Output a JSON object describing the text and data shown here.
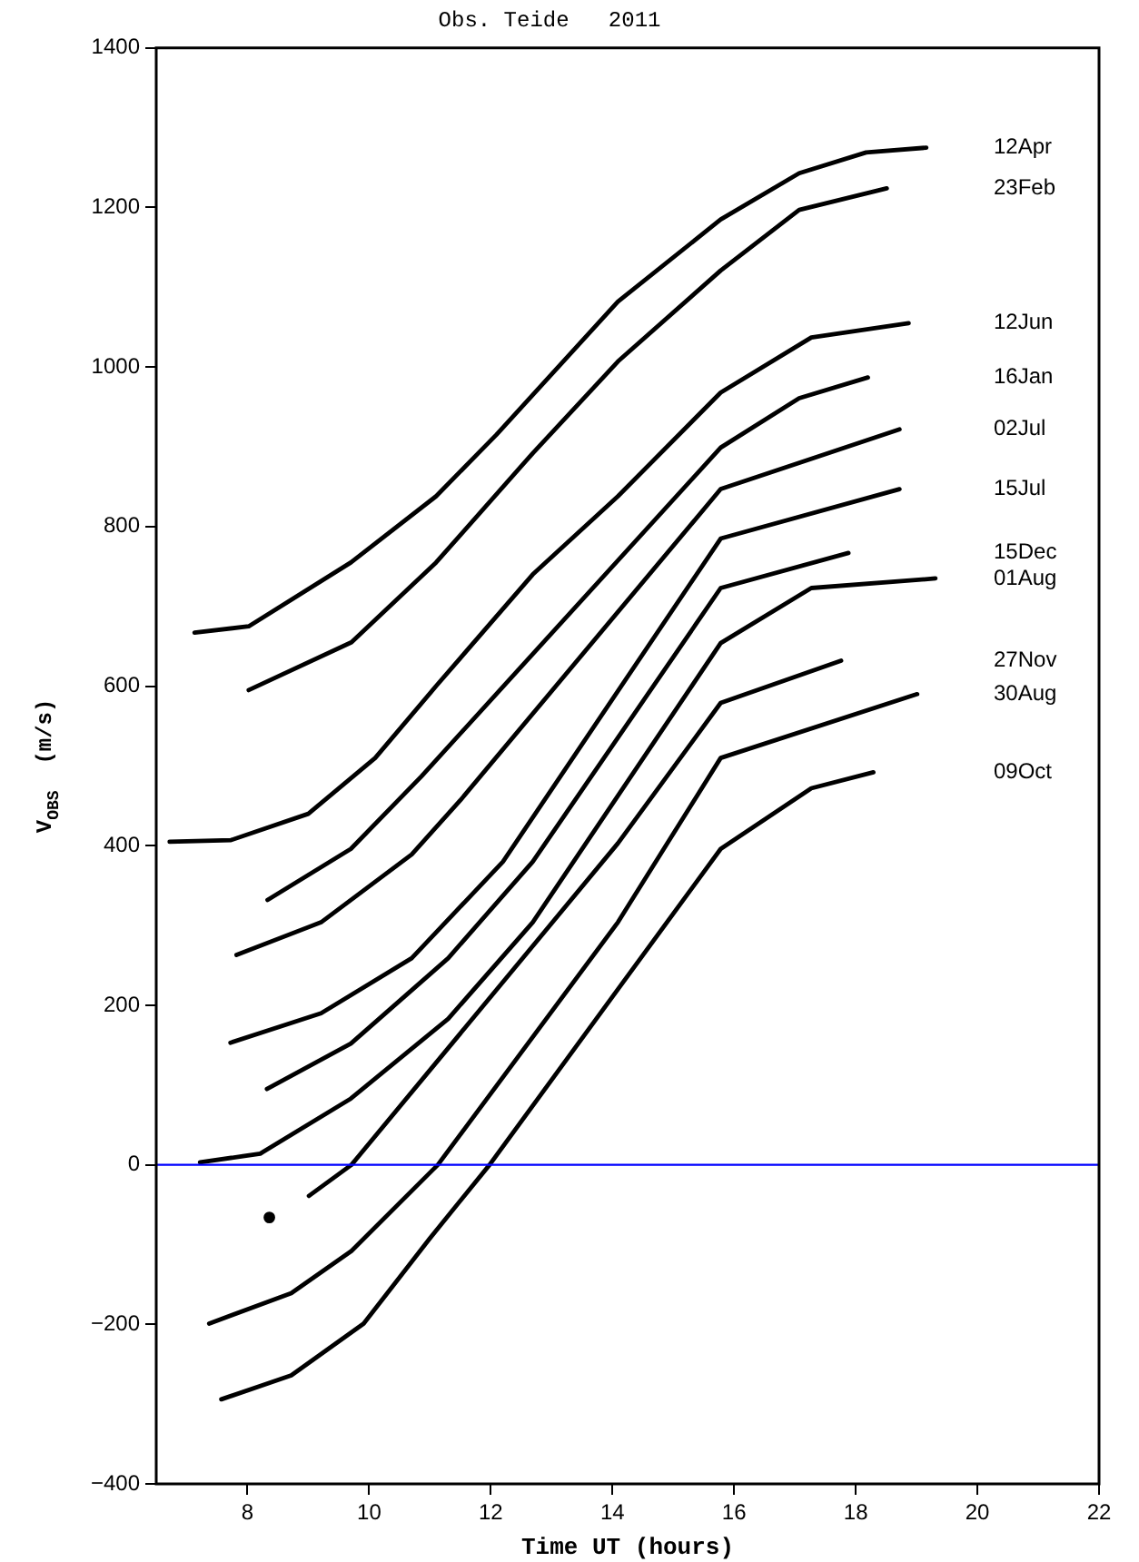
{
  "chart_data": {
    "type": "line",
    "title": "Obs. Teide   2011",
    "xlabel": "Time UT (hours)",
    "ylabel": "V$_{OBS}$  (m/s)",
    "xlim": [
      6.5,
      22
    ],
    "xticks": [
      8,
      10,
      12,
      14,
      16,
      18,
      20,
      22
    ],
    "ylim": [
      -400,
      1400
    ],
    "yticks": [
      {
        "value": -400,
        "label": "−400"
      },
      {
        "value": -200,
        "label": "−200"
      },
      0,
      200,
      400,
      600,
      800,
      1000,
      1200,
      1400
    ],
    "grid": false,
    "legend": false,
    "marker": "none",
    "line_style": "solid",
    "ref_lines": [
      {
        "axis": "y",
        "value": 0,
        "color": "#0000ff"
      }
    ],
    "series": [
      {
        "name": "12Apr",
        "color": "#000000",
        "x": [
          7.13,
          8.02,
          9.7,
          11.1,
          12.09,
          14.09,
          15.78,
          17.07,
          18.17,
          19.16
        ],
        "values": [
          667,
          675,
          755,
          838,
          915,
          1082,
          1185,
          1243,
          1269,
          1275
        ]
      },
      {
        "name": "23Feb",
        "color": "#000000",
        "x": [
          8.02,
          9.71,
          11.1,
          12.69,
          14.09,
          15.78,
          17.07,
          18.51
        ],
        "values": [
          595,
          655,
          755,
          892,
          1007,
          1121,
          1197,
          1224
        ]
      },
      {
        "name": "12Jun",
        "color": "#000000",
        "x": [
          6.72,
          7.73,
          9.0,
          10.1,
          11.1,
          12.69,
          14.09,
          15.78,
          17.27,
          18.87
        ],
        "values": [
          405,
          407,
          440,
          510,
          600,
          740,
          838,
          968,
          1037,
          1055
        ]
      },
      {
        "name": "16Jan",
        "color": "#000000",
        "x": [
          8.33,
          9.7,
          10.86,
          15.78,
          17.07,
          18.2
        ],
        "values": [
          332,
          396,
          487,
          899,
          961,
          987
        ]
      },
      {
        "name": "02Jul",
        "color": "#000000",
        "x": [
          7.82,
          9.21,
          10.7,
          11.5,
          15.78,
          18.72
        ],
        "values": [
          263,
          304,
          389,
          457,
          847,
          922
        ]
      },
      {
        "name": "15Jul",
        "color": "#000000",
        "x": [
          7.72,
          9.21,
          10.7,
          12.2,
          15.78,
          18.72
        ],
        "values": [
          153,
          190,
          259,
          380,
          785,
          847
        ]
      },
      {
        "name": "15Dec",
        "color": "#000000",
        "x": [
          8.32,
          9.7,
          11.3,
          12.69,
          15.78,
          17.88
        ],
        "values": [
          95,
          152,
          259,
          380,
          723,
          767
        ]
      },
      {
        "name": "01Aug",
        "color": "#000000",
        "x": [
          7.22,
          8.21,
          9.7,
          11.3,
          12.69,
          15.78,
          17.27,
          19.31
        ],
        "values": [
          3,
          14,
          83,
          183,
          304,
          654,
          723,
          735
        ]
      },
      {
        "name": "27Nov",
        "color": "#000000",
        "x": [
          8.36,
          8.7,
          9.01,
          9.71,
          14.09,
          15.78,
          17.76
        ],
        "values": [
          -66,
          null,
          -39,
          0,
          403,
          579,
          632
        ]
      },
      {
        "name": "30Aug",
        "color": "#000000",
        "x": [
          7.37,
          8.72,
          9.71,
          11.13,
          14.09,
          15.78,
          19.01
        ],
        "values": [
          -199,
          -161,
          -108,
          0,
          304,
          510,
          590
        ]
      },
      {
        "name": "09Oct",
        "color": "#000000",
        "x": [
          7.57,
          8.72,
          9.91,
          11.0,
          11.98,
          14.09,
          15.78,
          17.27,
          18.29
        ],
        "values": [
          -294,
          -264,
          -199,
          -92,
          0,
          220,
          396,
          472,
          492
        ]
      }
    ]
  }
}
